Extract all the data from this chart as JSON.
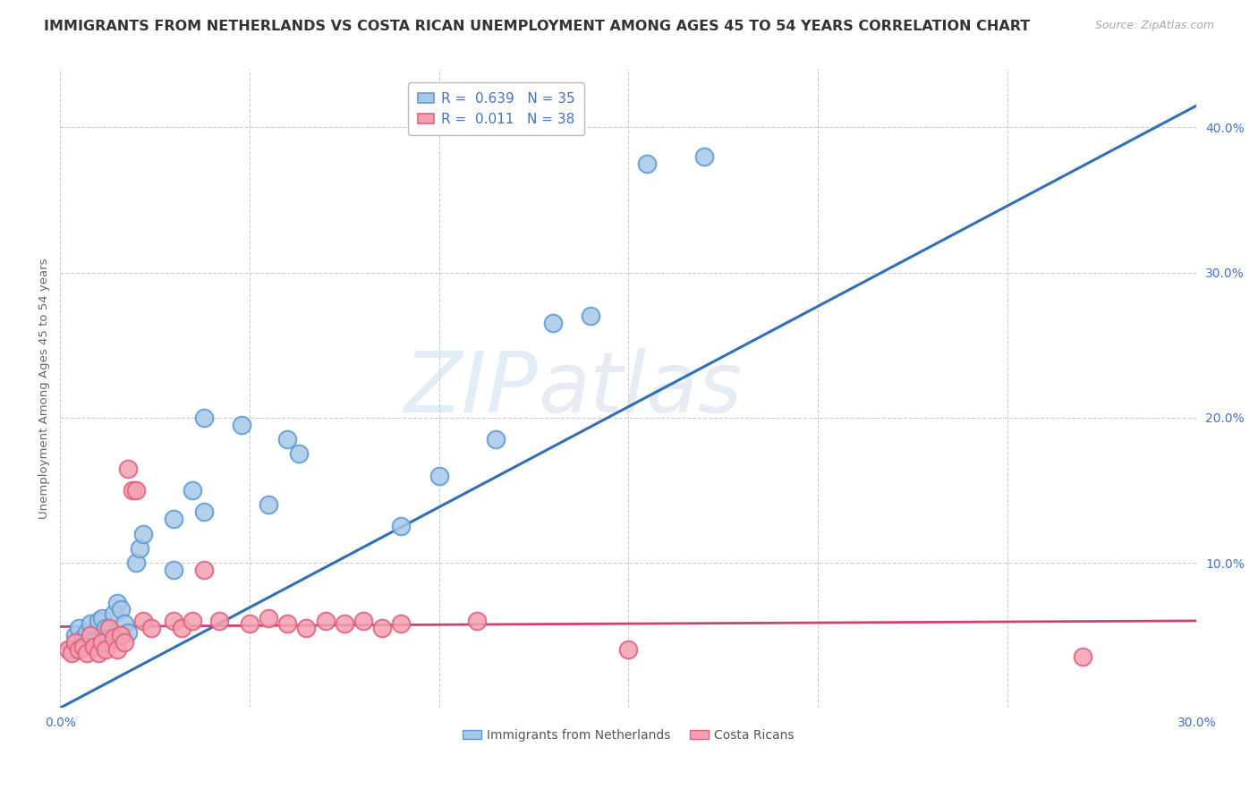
{
  "title": "IMMIGRANTS FROM NETHERLANDS VS COSTA RICAN UNEMPLOYMENT AMONG AGES 45 TO 54 YEARS CORRELATION CHART",
  "source": "Source: ZipAtlas.com",
  "ylabel": "Unemployment Among Ages 45 to 54 years",
  "xlim": [
    0.0,
    0.3
  ],
  "ylim": [
    0.0,
    0.44
  ],
  "xticks": [
    0.0,
    0.05,
    0.1,
    0.15,
    0.2,
    0.25,
    0.3
  ],
  "xticklabels": [
    "0.0%",
    "",
    "",
    "",
    "",
    "",
    "30.0%"
  ],
  "yticks_right": [
    0.0,
    0.1,
    0.2,
    0.3,
    0.4
  ],
  "ytick_right_labels": [
    "",
    "10.0%",
    "20.0%",
    "30.0%",
    "40.0%"
  ],
  "blue_color": "#a8c8e8",
  "pink_color": "#f4a0b0",
  "blue_edge_color": "#5b9bd5",
  "pink_edge_color": "#e06080",
  "legend_R_blue": "R = 0.639",
  "legend_N_blue": "N = 35",
  "legend_R_pink": "R = 0.011",
  "legend_N_pink": "N = 38",
  "watermark_zip": "ZIP",
  "watermark_atlas": "atlas",
  "blue_line_color": "#3070b8",
  "pink_line_color": "#d04070",
  "blue_line_x": [
    0.0,
    0.3
  ],
  "blue_line_y": [
    0.0,
    0.415
  ],
  "pink_line_x": [
    0.0,
    0.3
  ],
  "pink_line_y": [
    0.056,
    0.06
  ],
  "blue_scatter_x": [
    0.003,
    0.004,
    0.005,
    0.006,
    0.007,
    0.008,
    0.009,
    0.01,
    0.011,
    0.012,
    0.013,
    0.014,
    0.015,
    0.016,
    0.017,
    0.018,
    0.02,
    0.021,
    0.022,
    0.03,
    0.035,
    0.038,
    0.048,
    0.06,
    0.063,
    0.09,
    0.1,
    0.115,
    0.14,
    0.155,
    0.17,
    0.03,
    0.038,
    0.055,
    0.13
  ],
  "blue_scatter_y": [
    0.04,
    0.05,
    0.055,
    0.048,
    0.052,
    0.058,
    0.045,
    0.06,
    0.062,
    0.055,
    0.048,
    0.065,
    0.072,
    0.068,
    0.058,
    0.052,
    0.1,
    0.11,
    0.12,
    0.13,
    0.15,
    0.2,
    0.195,
    0.185,
    0.175,
    0.125,
    0.16,
    0.185,
    0.27,
    0.375,
    0.38,
    0.095,
    0.135,
    0.14,
    0.265
  ],
  "pink_scatter_x": [
    0.002,
    0.003,
    0.004,
    0.005,
    0.006,
    0.007,
    0.008,
    0.009,
    0.01,
    0.011,
    0.012,
    0.013,
    0.014,
    0.015,
    0.016,
    0.017,
    0.018,
    0.019,
    0.02,
    0.022,
    0.024,
    0.03,
    0.032,
    0.035,
    0.038,
    0.042,
    0.05,
    0.055,
    0.06,
    0.065,
    0.07,
    0.075,
    0.08,
    0.085,
    0.09,
    0.11,
    0.15,
    0.27
  ],
  "pink_scatter_y": [
    0.04,
    0.038,
    0.045,
    0.04,
    0.042,
    0.038,
    0.05,
    0.042,
    0.038,
    0.045,
    0.04,
    0.055,
    0.048,
    0.04,
    0.05,
    0.045,
    0.165,
    0.15,
    0.15,
    0.06,
    0.055,
    0.06,
    0.055,
    0.06,
    0.095,
    0.06,
    0.058,
    0.062,
    0.058,
    0.055,
    0.06,
    0.058,
    0.06,
    0.055,
    0.058,
    0.06,
    0.04,
    0.035
  ],
  "grid_color": "#cccccc",
  "background_color": "#ffffff",
  "title_fontsize": 11.5,
  "axis_fontsize": 9.5,
  "tick_fontsize": 10,
  "legend_fontsize": 11
}
